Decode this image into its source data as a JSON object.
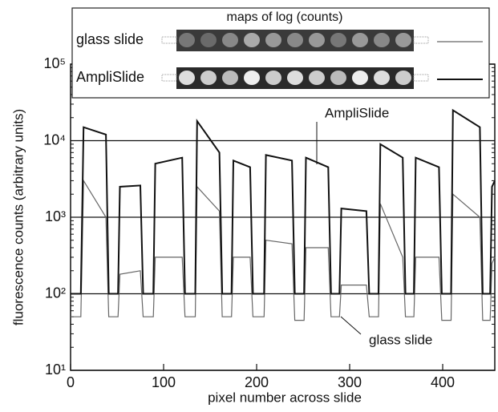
{
  "chart_data": {
    "type": "line",
    "log_y": true,
    "grid": true,
    "inset_title": "maps of log (counts)",
    "xlabel": "pixel number across slide",
    "ylabel": "fluorescence counts (arbitrary units)",
    "xlim": [
      0,
      456
    ],
    "xticks": [
      0,
      100,
      200,
      300,
      400
    ],
    "ylim": [
      10,
      100000
    ],
    "yticks": [
      {
        "value": 10,
        "label": "10¹"
      },
      {
        "value": 100,
        "label": "10²"
      },
      {
        "value": 1000,
        "label": "10³"
      },
      {
        "value": 10000,
        "label": "10⁴"
      },
      {
        "value": 100000,
        "label": "10⁵"
      }
    ],
    "annotations": [
      "AmpliSlide",
      "glass slide"
    ],
    "x": [
      0,
      11,
      14,
      38,
      41,
      51,
      53,
      75,
      78,
      89,
      91,
      120,
      123,
      134,
      136,
      160,
      163,
      173,
      175,
      193,
      196,
      208,
      210,
      238,
      241,
      251,
      253,
      277,
      280,
      289,
      291,
      318,
      321,
      331,
      333,
      357,
      360,
      369,
      371,
      396,
      399,
      409,
      411,
      440,
      443,
      451,
      453,
      456
    ],
    "series": [
      {
        "name": "glass slide",
        "color": "#666666",
        "values": [
          50,
          50,
          3000,
          1000,
          50,
          50,
          180,
          200,
          50,
          50,
          300,
          300,
          50,
          50,
          2500,
          1200,
          50,
          50,
          300,
          300,
          50,
          50,
          500,
          450,
          45,
          45,
          400,
          400,
          50,
          50,
          130,
          130,
          50,
          50,
          1500,
          300,
          50,
          50,
          300,
          300,
          45,
          45,
          2000,
          1000,
          45,
          45,
          250,
          300
        ]
      },
      {
        "name": "AmpliSlide",
        "color": "#111111",
        "values": [
          100,
          100,
          15000,
          12000,
          100,
          100,
          2500,
          2600,
          100,
          100,
          5000,
          6000,
          100,
          100,
          18000,
          7000,
          100,
          100,
          5500,
          4500,
          100,
          100,
          6500,
          5500,
          100,
          100,
          6000,
          4500,
          100,
          100,
          1300,
          1200,
          100,
          100,
          9000,
          6000,
          100,
          100,
          6000,
          4500,
          100,
          100,
          25000,
          15000,
          100,
          100,
          2500,
          3000
        ]
      }
    ]
  }
}
